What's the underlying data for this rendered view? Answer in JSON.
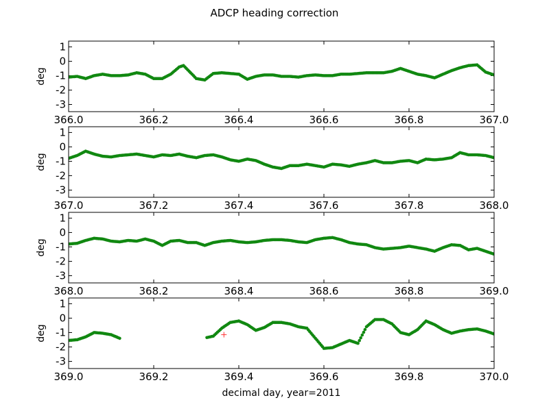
{
  "figure": {
    "title": "ADCP heading correction",
    "xlabel": "decimal day, year=2011"
  },
  "colors": {
    "series": "#118811",
    "marker": "#ff3333"
  },
  "chart_data": [
    {
      "type": "scatter",
      "ylabel": "deg",
      "xlim": [
        366.0,
        367.0
      ],
      "ylim": [
        -3.5,
        1.4
      ],
      "xticks": [
        "366.0",
        "366.2",
        "366.4",
        "366.6",
        "366.8",
        "367.0"
      ],
      "yticks": [
        "1",
        "0",
        "-1",
        "-2",
        "-3"
      ],
      "series": [
        {
          "x": [
            366.0,
            366.02,
            366.04,
            366.06,
            366.08,
            366.1,
            366.12,
            366.14,
            366.16,
            366.18,
            366.2,
            366.22,
            366.24,
            366.26,
            366.27,
            366.28,
            366.3,
            366.32,
            366.34,
            366.36,
            366.38,
            366.4,
            366.42,
            366.44,
            366.46,
            366.48,
            366.5,
            366.52,
            366.54,
            366.56,
            366.58,
            366.6,
            366.62,
            366.64,
            366.66,
            366.68,
            366.7,
            366.72,
            366.74,
            366.76,
            366.78,
            366.8,
            366.82,
            366.84,
            366.86,
            366.88,
            366.9,
            366.92,
            366.94,
            366.96,
            366.98,
            367.0
          ],
          "y": [
            -1.1,
            -1.05,
            -1.2,
            -1.0,
            -0.9,
            -1.0,
            -1.0,
            -0.95,
            -0.8,
            -0.9,
            -1.2,
            -1.2,
            -0.9,
            -0.4,
            -0.3,
            -0.6,
            -1.2,
            -1.3,
            -0.85,
            -0.8,
            -0.85,
            -0.9,
            -1.25,
            -1.05,
            -0.95,
            -0.95,
            -1.05,
            -1.05,
            -1.1,
            -1.0,
            -0.95,
            -1.0,
            -1.0,
            -0.9,
            -0.9,
            -0.85,
            -0.8,
            -0.8,
            -0.8,
            -0.7,
            -0.5,
            -0.7,
            -0.9,
            -1.0,
            -1.15,
            -0.9,
            -0.65,
            -0.45,
            -0.3,
            -0.25,
            -0.75,
            -0.95
          ]
        }
      ]
    },
    {
      "type": "scatter",
      "ylabel": "deg",
      "xlim": [
        367.0,
        368.0
      ],
      "ylim": [
        -3.5,
        1.4
      ],
      "xticks": [
        "367.0",
        "367.2",
        "367.4",
        "367.6",
        "367.8",
        "368.0"
      ],
      "yticks": [
        "1",
        "0",
        "-1",
        "-2",
        "-3"
      ],
      "series": [
        {
          "x": [
            367.0,
            367.02,
            367.04,
            367.06,
            367.08,
            367.1,
            367.12,
            367.14,
            367.16,
            367.18,
            367.2,
            367.22,
            367.24,
            367.26,
            367.28,
            367.3,
            367.32,
            367.34,
            367.36,
            367.38,
            367.4,
            367.42,
            367.44,
            367.46,
            367.48,
            367.5,
            367.52,
            367.54,
            367.56,
            367.58,
            367.6,
            367.62,
            367.64,
            367.66,
            367.68,
            367.7,
            367.72,
            367.74,
            367.76,
            367.78,
            367.8,
            367.82,
            367.84,
            367.86,
            367.88,
            367.9,
            367.92,
            367.94,
            367.96,
            367.98,
            368.0
          ],
          "y": [
            -0.8,
            -0.6,
            -0.3,
            -0.5,
            -0.65,
            -0.7,
            -0.6,
            -0.55,
            -0.5,
            -0.6,
            -0.7,
            -0.55,
            -0.6,
            -0.5,
            -0.65,
            -0.75,
            -0.6,
            -0.55,
            -0.7,
            -0.9,
            -1.0,
            -0.85,
            -0.95,
            -1.2,
            -1.4,
            -1.5,
            -1.3,
            -1.3,
            -1.2,
            -1.3,
            -1.4,
            -1.2,
            -1.25,
            -1.35,
            -1.2,
            -1.1,
            -0.95,
            -1.1,
            -1.1,
            -1.0,
            -0.95,
            -1.1,
            -0.85,
            -0.9,
            -0.85,
            -0.75,
            -0.4,
            -0.55,
            -0.55,
            -0.6,
            -0.75
          ]
        }
      ]
    },
    {
      "type": "scatter",
      "ylabel": "deg",
      "xlim": [
        368.0,
        369.0
      ],
      "ylim": [
        -3.5,
        1.4
      ],
      "xticks": [
        "368.0",
        "368.2",
        "368.4",
        "368.6",
        "368.8",
        "369.0"
      ],
      "yticks": [
        "1",
        "0",
        "-1",
        "-2",
        "-3"
      ],
      "series": [
        {
          "x": [
            368.0,
            368.02,
            368.04,
            368.06,
            368.08,
            368.1,
            368.12,
            368.14,
            368.16,
            368.18,
            368.2,
            368.22,
            368.24,
            368.26,
            368.28,
            368.3,
            368.32,
            368.34,
            368.36,
            368.38,
            368.4,
            368.42,
            368.44,
            368.46,
            368.48,
            368.5,
            368.52,
            368.54,
            368.56,
            368.58,
            368.6,
            368.62,
            368.64,
            368.66,
            368.68,
            368.7,
            368.72,
            368.74,
            368.76,
            368.78,
            368.8,
            368.82,
            368.84,
            368.86,
            368.88,
            368.9,
            368.92,
            368.94,
            368.96,
            368.98,
            369.0
          ],
          "y": [
            -0.8,
            -0.75,
            -0.55,
            -0.4,
            -0.45,
            -0.6,
            -0.65,
            -0.55,
            -0.6,
            -0.45,
            -0.6,
            -0.9,
            -0.6,
            -0.55,
            -0.7,
            -0.7,
            -0.9,
            -0.7,
            -0.6,
            -0.55,
            -0.65,
            -0.7,
            -0.65,
            -0.55,
            -0.5,
            -0.5,
            -0.55,
            -0.65,
            -0.7,
            -0.5,
            -0.4,
            -0.35,
            -0.5,
            -0.7,
            -0.8,
            -0.85,
            -1.05,
            -1.15,
            -1.1,
            -1.05,
            -0.95,
            -1.05,
            -1.15,
            -1.3,
            -1.05,
            -0.85,
            -0.9,
            -1.2,
            -1.1,
            -1.3,
            -1.5
          ]
        }
      ]
    },
    {
      "type": "scatter",
      "ylabel": "deg",
      "xlim": [
        369.0,
        370.0
      ],
      "ylim": [
        -3.5,
        1.4
      ],
      "xticks": [
        "369.0",
        "369.2",
        "369.4",
        "369.6",
        "369.8",
        "370.0"
      ],
      "yticks": [
        "1",
        "0",
        "-1",
        "-2",
        "-3"
      ],
      "series": [
        {
          "x": [
            369.0,
            369.02,
            369.04,
            369.06,
            369.08,
            369.1,
            369.12
          ],
          "y": [
            -1.55,
            -1.5,
            -1.3,
            -1.0,
            -1.05,
            -1.15,
            -1.4
          ]
        },
        {
          "x": [
            369.325,
            369.34,
            369.36,
            369.38,
            369.4,
            369.42,
            369.44,
            369.46,
            369.48,
            369.5,
            369.52,
            369.54,
            369.56,
            369.58,
            369.6,
            369.62,
            369.64,
            369.66,
            369.68,
            369.7,
            369.72,
            369.74,
            369.76,
            369.78,
            369.8,
            369.82,
            369.84,
            369.86,
            369.88,
            369.9,
            369.92,
            369.94,
            369.96,
            369.98,
            370.0
          ],
          "y": [
            -1.35,
            -1.25,
            -0.7,
            -0.3,
            -0.2,
            -0.45,
            -0.85,
            -0.65,
            -0.3,
            -0.3,
            -0.4,
            -0.6,
            -0.7,
            -1.4,
            -2.1,
            -2.05,
            -1.8,
            -1.55,
            -1.75,
            -0.6,
            -0.1,
            -0.1,
            -0.4,
            -1.0,
            -1.15,
            -0.8,
            -0.2,
            -0.45,
            -0.8,
            -1.05,
            -0.9,
            -0.8,
            -0.75,
            -0.9,
            -1.1
          ]
        }
      ],
      "markers": [
        {
          "x": 369.365,
          "y": -1.15,
          "shape": "plus"
        }
      ]
    }
  ]
}
